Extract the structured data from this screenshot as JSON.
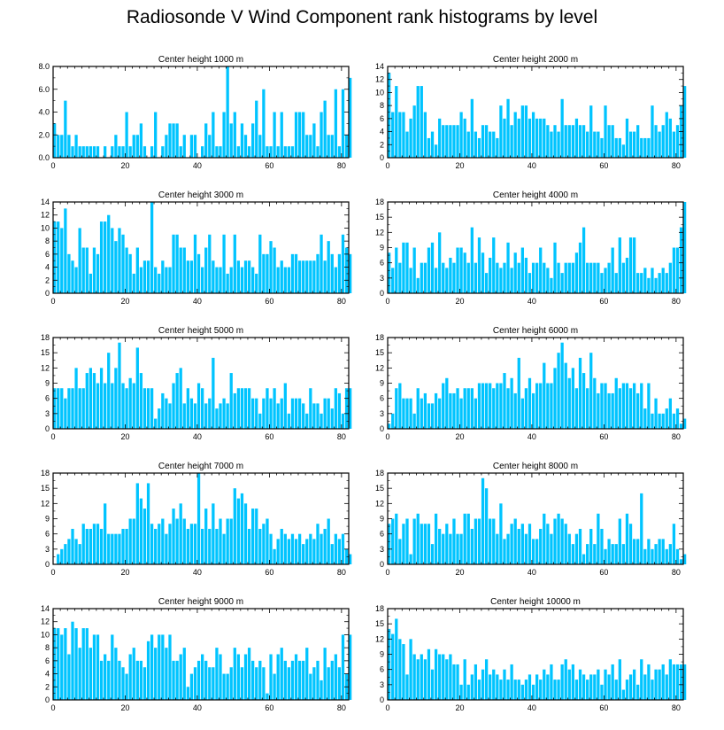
{
  "title": "Radiosonde V Wind Component rank histograms by level",
  "colors": {
    "bar": "#00c4ff",
    "frame": "#000000"
  },
  "chart_data": [
    {
      "type": "bar",
      "title": "Center height 1000 m",
      "x_ticks": [
        0,
        20,
        40,
        60,
        80
      ],
      "y_ticks": [
        "0.0",
        "2.0",
        "4.0",
        "6.0",
        "8.0"
      ],
      "ylim": [
        0,
        8
      ],
      "xlim": [
        0,
        82
      ],
      "values": [
        3,
        2,
        2,
        5,
        2,
        1,
        2,
        1,
        1,
        1,
        1,
        1,
        1,
        0,
        1,
        0,
        1,
        2,
        1,
        1,
        4,
        1,
        2,
        2,
        3,
        1,
        0,
        1,
        4,
        0,
        1,
        2,
        3,
        3,
        3,
        1,
        2,
        0,
        2,
        2,
        0,
        1,
        3,
        2,
        4,
        1,
        1,
        4,
        8,
        3,
        4,
        1,
        3,
        2,
        1,
        3,
        5,
        2,
        6,
        1,
        1,
        4,
        1,
        4,
        1,
        1,
        1,
        4,
        4,
        4,
        2,
        2,
        3,
        1,
        4,
        5,
        2,
        2,
        6,
        1,
        6,
        2,
        7
      ]
    },
    {
      "type": "bar",
      "title": "Center height 2000 m",
      "x_ticks": [
        0,
        20,
        40,
        60,
        80
      ],
      "y_ticks": [
        "0",
        "2",
        "4",
        "6",
        "8",
        "10",
        "12",
        "14"
      ],
      "ylim": [
        0,
        14
      ],
      "xlim": [
        0,
        82
      ],
      "values": [
        13,
        7,
        11,
        7,
        7,
        4,
        6,
        8,
        11,
        11,
        7,
        3,
        4,
        2,
        6,
        5,
        5,
        5,
        5,
        5,
        7,
        6,
        4,
        9,
        4,
        3,
        5,
        5,
        4,
        4,
        3,
        8,
        6,
        9,
        5,
        7,
        6,
        8,
        8,
        6,
        7,
        6,
        6,
        6,
        5,
        4,
        5,
        4,
        9,
        5,
        5,
        5,
        6,
        5,
        5,
        4,
        8,
        4,
        4,
        3,
        8,
        5,
        5,
        3,
        3,
        2,
        6,
        4,
        4,
        5,
        3,
        3,
        3,
        8,
        5,
        4,
        5,
        7,
        6,
        4,
        5,
        8,
        11
      ]
    },
    {
      "type": "bar",
      "title": "Center height 3000 m",
      "x_ticks": [
        0,
        20,
        40,
        60,
        80
      ],
      "y_ticks": [
        "0",
        "2",
        "4",
        "6",
        "8",
        "10",
        "12",
        "14"
      ],
      "ylim": [
        0,
        14
      ],
      "xlim": [
        0,
        82
      ],
      "values": [
        11,
        11,
        10,
        13,
        6,
        5,
        4,
        10,
        7,
        7,
        3,
        7,
        6,
        11,
        11,
        12,
        10,
        8,
        10,
        9,
        7,
        6,
        3,
        7,
        4,
        5,
        5,
        14,
        4,
        3,
        5,
        4,
        4,
        9,
        9,
        7,
        7,
        5,
        5,
        9,
        6,
        4,
        7,
        9,
        5,
        4,
        4,
        9,
        3,
        4,
        9,
        5,
        4,
        5,
        5,
        4,
        3,
        9,
        6,
        6,
        8,
        7,
        4,
        5,
        4,
        4,
        6,
        6,
        5,
        5,
        5,
        5,
        5,
        6,
        9,
        5,
        8,
        6,
        4,
        6,
        9,
        7,
        6
      ]
    },
    {
      "type": "bar",
      "title": "Center height 4000 m",
      "x_ticks": [
        0,
        20,
        40,
        60,
        80
      ],
      "y_ticks": [
        "0",
        "3",
        "6",
        "9",
        "12",
        "15",
        "18"
      ],
      "ylim": [
        0,
        18
      ],
      "xlim": [
        0,
        82
      ],
      "values": [
        8,
        5,
        9,
        6,
        10,
        10,
        5,
        9,
        3,
        6,
        6,
        9,
        10,
        5,
        12,
        6,
        5,
        7,
        6,
        9,
        9,
        8,
        6,
        13,
        6,
        11,
        8,
        4,
        7,
        11,
        6,
        5,
        6,
        10,
        5,
        8,
        6,
        9,
        7,
        4,
        6,
        6,
        9,
        6,
        5,
        3,
        10,
        6,
        4,
        6,
        6,
        6,
        8,
        10,
        13,
        6,
        6,
        6,
        6,
        4,
        5,
        6,
        9,
        4,
        11,
        6,
        7,
        11,
        11,
        4,
        4,
        5,
        3,
        5,
        3,
        4,
        5,
        4,
        6,
        9,
        9,
        13,
        18
      ]
    },
    {
      "type": "bar",
      "title": "Center height 5000 m",
      "x_ticks": [
        0,
        20,
        40,
        60,
        80
      ],
      "y_ticks": [
        "0",
        "3",
        "6",
        "9",
        "12",
        "15",
        "18"
      ],
      "ylim": [
        0,
        18
      ],
      "xlim": [
        0,
        82
      ],
      "values": [
        8,
        8,
        8,
        6,
        8,
        8,
        12,
        8,
        8,
        11,
        12,
        11,
        9,
        12,
        9,
        15,
        9,
        12,
        17,
        9,
        8,
        10,
        9,
        16,
        11,
        8,
        8,
        8,
        2,
        4,
        7,
        6,
        5,
        9,
        11,
        12,
        5,
        8,
        6,
        5,
        9,
        8,
        5,
        6,
        14,
        4,
        5,
        6,
        5,
        11,
        7,
        8,
        8,
        8,
        8,
        6,
        6,
        3,
        6,
        8,
        6,
        8,
        5,
        6,
        9,
        3,
        6,
        6,
        6,
        5,
        3,
        8,
        5,
        5,
        3,
        6,
        6,
        4,
        8,
        7,
        3,
        8,
        8
      ]
    },
    {
      "type": "bar",
      "title": "Center height 6000 m",
      "x_ticks": [
        0,
        20,
        40,
        60,
        80
      ],
      "y_ticks": [
        "0",
        "3",
        "6",
        "9",
        "12",
        "15",
        "18"
      ],
      "ylim": [
        0,
        18
      ],
      "xlim": [
        0,
        82
      ],
      "values": [
        1,
        3,
        8,
        9,
        6,
        6,
        6,
        3,
        8,
        6,
        7,
        5,
        5,
        7,
        6,
        9,
        10,
        7,
        7,
        8,
        6,
        8,
        8,
        8,
        6,
        9,
        9,
        9,
        9,
        8,
        9,
        9,
        11,
        8,
        10,
        7,
        14,
        6,
        8,
        10,
        7,
        9,
        9,
        13,
        9,
        9,
        12,
        15,
        17,
        13,
        10,
        12,
        8,
        14,
        11,
        8,
        15,
        10,
        7,
        9,
        9,
        7,
        7,
        10,
        8,
        9,
        9,
        8,
        9,
        7,
        9,
        4,
        9,
        3,
        6,
        3,
        3,
        4,
        6,
        3,
        4,
        1,
        2
      ]
    },
    {
      "type": "bar",
      "title": "Center height 7000 m",
      "x_ticks": [
        0,
        20,
        40,
        60,
        80
      ],
      "y_ticks": [
        "0",
        "3",
        "6",
        "9",
        "12",
        "15",
        "18"
      ],
      "ylim": [
        0,
        18
      ],
      "xlim": [
        0,
        82
      ],
      "values": [
        0,
        2,
        3,
        4,
        5,
        7,
        5,
        4,
        8,
        7,
        7,
        8,
        8,
        7,
        12,
        6,
        6,
        6,
        6,
        7,
        7,
        9,
        9,
        16,
        13,
        11,
        16,
        8,
        7,
        8,
        9,
        6,
        8,
        11,
        9,
        12,
        9,
        7,
        8,
        8,
        18,
        7,
        11,
        7,
        12,
        7,
        9,
        6,
        9,
        9,
        15,
        13,
        14,
        12,
        7,
        11,
        11,
        7,
        8,
        9,
        6,
        3,
        5,
        7,
        6,
        5,
        6,
        5,
        6,
        4,
        5,
        6,
        5,
        8,
        6,
        7,
        9,
        4,
        6,
        5,
        6,
        3,
        2
      ]
    },
    {
      "type": "bar",
      "title": "Center height 8000 m",
      "x_ticks": [
        0,
        20,
        40,
        60,
        80
      ],
      "y_ticks": [
        "0",
        "3",
        "6",
        "9",
        "12",
        "15",
        "18"
      ],
      "ylim": [
        0,
        18
      ],
      "xlim": [
        0,
        82
      ],
      "values": [
        8,
        9,
        10,
        5,
        8,
        9,
        2,
        9,
        10,
        8,
        8,
        8,
        4,
        10,
        7,
        6,
        8,
        6,
        9,
        6,
        6,
        10,
        10,
        7,
        9,
        9,
        17,
        15,
        9,
        9,
        6,
        12,
        5,
        6,
        8,
        9,
        7,
        8,
        6,
        8,
        5,
        5,
        7,
        10,
        8,
        6,
        9,
        10,
        9,
        8,
        6,
        4,
        6,
        7,
        2,
        4,
        7,
        4,
        10,
        7,
        3,
        5,
        4,
        4,
        9,
        4,
        10,
        8,
        5,
        5,
        14,
        3,
        5,
        3,
        4,
        5,
        5,
        3,
        4,
        8,
        3,
        1,
        2
      ]
    },
    {
      "type": "bar",
      "title": "Center height 9000 m",
      "x_ticks": [
        0,
        20,
        40,
        60,
        80
      ],
      "y_ticks": [
        "0",
        "2",
        "4",
        "6",
        "8",
        "10",
        "12",
        "14"
      ],
      "ylim": [
        0,
        14
      ],
      "xlim": [
        0,
        82
      ],
      "values": [
        11,
        11,
        10,
        11,
        7,
        12,
        11,
        8,
        11,
        11,
        8,
        10,
        10,
        6,
        7,
        6,
        10,
        8,
        6,
        5,
        4,
        7,
        8,
        6,
        6,
        5,
        9,
        10,
        8,
        10,
        10,
        8,
        10,
        6,
        6,
        7,
        8,
        2,
        4,
        5,
        6,
        7,
        6,
        5,
        5,
        8,
        7,
        4,
        4,
        5,
        8,
        7,
        5,
        7,
        8,
        6,
        5,
        6,
        5,
        1,
        7,
        4,
        7,
        8,
        6,
        5,
        6,
        7,
        6,
        6,
        8,
        4,
        5,
        6,
        3,
        8,
        5,
        6,
        7,
        5,
        10,
        4,
        10
      ]
    },
    {
      "type": "bar",
      "title": "Center height 10000 m",
      "x_ticks": [
        0,
        20,
        40,
        60,
        80
      ],
      "y_ticks": [
        "0",
        "3",
        "6",
        "9",
        "12",
        "15",
        "18"
      ],
      "ylim": [
        0,
        18
      ],
      "xlim": [
        0,
        82
      ],
      "values": [
        14,
        13,
        16,
        12,
        11,
        5,
        12,
        9,
        8,
        9,
        8,
        10,
        6,
        10,
        9,
        9,
        8,
        9,
        7,
        7,
        3,
        8,
        3,
        5,
        7,
        4,
        6,
        8,
        5,
        6,
        5,
        4,
        6,
        4,
        7,
        4,
        4,
        3,
        4,
        5,
        3,
        5,
        4,
        6,
        5,
        7,
        4,
        4,
        7,
        8,
        6,
        7,
        4,
        6,
        5,
        4,
        5,
        5,
        6,
        3,
        6,
        5,
        7,
        4,
        8,
        2,
        4,
        5,
        6,
        3,
        8,
        5,
        7,
        4,
        6,
        6,
        7,
        5,
        8,
        7,
        7,
        7,
        7
      ]
    }
  ]
}
